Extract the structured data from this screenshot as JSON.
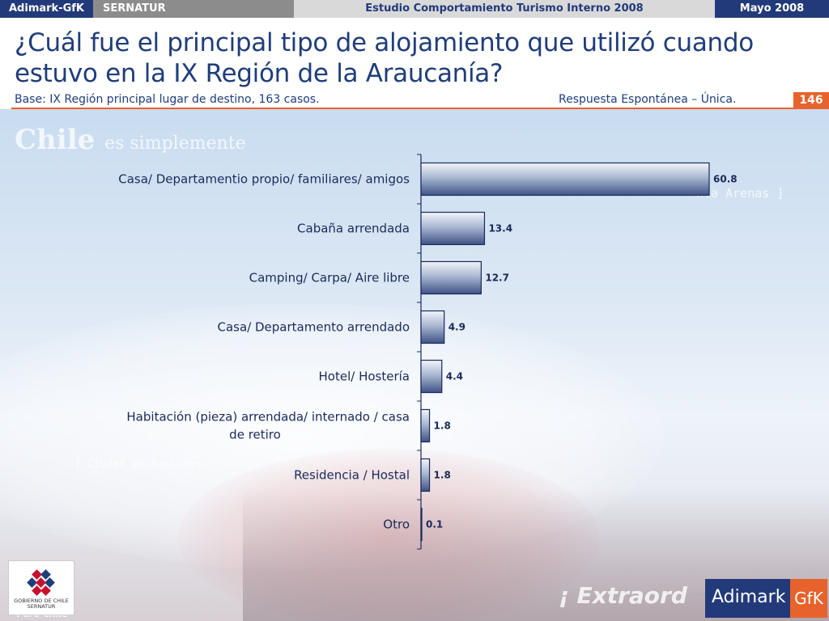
{
  "header": {
    "org1": "Adimark-GfK",
    "org2": "SERNATUR",
    "study": "Estudio Comportamiento Turismo Interno 2008",
    "date": "Mayo 2008"
  },
  "slide": {
    "title": "¿Cuál fue el principal tipo de alojamiento que utilizó cuando estuvo en la IX Región de la Araucanía?",
    "subtitle": "Base: IX Región principal lugar de destino, 163 casos.",
    "response_note": "Respuesta Espontánea – Única.",
    "page_number": "146"
  },
  "background_text": {
    "chile": "Chile",
    "chile_tagline": "es simplemente",
    "puntas": "nta Arenas ]",
    "ciudad": "[ Ciudad de Santiago ]",
    "extra": "¡ Extraord",
    "puro": "Puro Chile"
  },
  "logos": {
    "gobierno_line1": "GOBIERNO DE CHILE",
    "gobierno_line2": "SERNATUR",
    "adimark": "Adimark",
    "gfk": "GfK"
  },
  "chart_data": {
    "type": "bar",
    "orientation": "horizontal",
    "title": "",
    "xlabel": "",
    "ylabel": "",
    "xlim": [
      0,
      70
    ],
    "categories": [
      "Casa/ Departamentio propio/ familiares/ amigos",
      "Cabaña arrendada",
      "Camping/ Carpa/ Aire libre",
      "Casa/ Departamento arrendado",
      "Hotel/ Hostería",
      "Habitación (pieza) arrendada/ internado / casa de retiro",
      "Residencia / Hostal",
      "Otro"
    ],
    "category_lines": [
      [
        "Casa/ Departamentio propio/ familiares/ amigos"
      ],
      [
        "Cabaña arrendada"
      ],
      [
        "Camping/ Carpa/ Aire libre"
      ],
      [
        "Casa/ Departamento arrendado"
      ],
      [
        "Hotel/ Hostería"
      ],
      [
        "Habitación (pieza) arrendada/ internado / casa",
        "de retiro"
      ],
      [
        "Residencia / Hostal"
      ],
      [
        "Otro"
      ]
    ],
    "values": [
      60.8,
      13.4,
      12.7,
      4.9,
      4.4,
      1.8,
      1.8,
      0.1
    ],
    "value_labels": [
      "60.8",
      "13.4",
      "12.7",
      "4.9",
      "4.4",
      "1.8",
      "1.8",
      "0.1"
    ],
    "colors": {
      "bar_top": "#dfe6f2",
      "bar_bottom": "#4a5f8f",
      "bar_border": "#1a2a5a",
      "axis": "#1a2a5a"
    }
  }
}
